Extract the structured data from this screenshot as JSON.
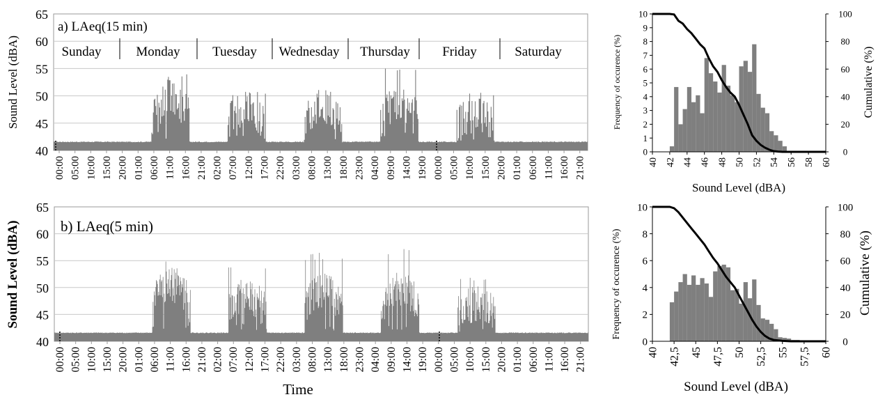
{
  "chart_data": [
    {
      "id": "ts_15",
      "type": "bar",
      "panel_label": "a) LAeq(15 min)",
      "ylabel": "Sound Level (dBA)",
      "xlabel": "",
      "ylim": [
        40,
        65
      ],
      "yticks": [
        40,
        45,
        50,
        55,
        60,
        65
      ],
      "grid": "horizontal",
      "time_ticks": [
        "00:00",
        "05:00",
        "10:00",
        "15:00",
        "20:00",
        "01:00",
        "06:00",
        "11:00",
        "16:00",
        "21:00",
        "02:00",
        "07:00",
        "12:00",
        "17:00",
        "22:00",
        "03:00",
        "08:00",
        "13:00",
        "18:00",
        "23:00",
        "04:00",
        "09:00",
        "14:00",
        "19:00",
        "00:00",
        "05:00",
        "10:00",
        "15:00",
        "20:00",
        "01:00",
        "06:00",
        "11:00",
        "16:00",
        "21:00"
      ],
      "days": [
        "Sunday",
        "Monday",
        "Tuesday",
        "Wednesday",
        "Thursday",
        "Friday",
        "Saturday"
      ],
      "baseline": 41.5,
      "day_peaks": [
        {
          "day": "Monday",
          "mean": 49.5,
          "max": 54
        },
        {
          "day": "Tuesday",
          "mean": 47.5,
          "max": 51.5
        },
        {
          "day": "Wednesday",
          "mean": 48,
          "max": 53.5
        },
        {
          "day": "Thursday",
          "mean": 48.5,
          "max": 55
        },
        {
          "day": "Friday",
          "mean": 46.5,
          "max": 51
        }
      ]
    },
    {
      "id": "ts_5",
      "type": "bar",
      "panel_label": "b)  LAeq(5  min)",
      "ylabel": "Sound Level  (dBA)",
      "xlabel": "Time",
      "ylim": [
        40,
        65
      ],
      "yticks": [
        40,
        45,
        50,
        55,
        60,
        65
      ],
      "grid": "horizontal",
      "time_ticks": [
        "00:00",
        "05:00",
        "10:00",
        "15:00",
        "20:00",
        "01:00",
        "06:00",
        "11:00",
        "16:00",
        "21:00",
        "02:00",
        "07:00",
        "12:00",
        "17:00",
        "22:00",
        "03:00",
        "08:00",
        "13:00",
        "18:00",
        "23:00",
        "04:00",
        "09:00",
        "14:00",
        "19:00",
        "00:00",
        "05:00",
        "10:00",
        "15:00",
        "20:00",
        "01:00",
        "06:00",
        "11:00",
        "16:00",
        "21:00"
      ],
      "baseline": 41.5,
      "day_peaks": [
        {
          "day": "Monday",
          "mean": 50.5,
          "max": 55.5
        },
        {
          "day": "Tuesday",
          "mean": 48.5,
          "max": 54
        },
        {
          "day": "Wednesday",
          "mean": 49.5,
          "max": 56.5
        },
        {
          "day": "Thursday",
          "mean": 50,
          "max": 57.5
        },
        {
          "day": "Friday",
          "mean": 47,
          "max": 52
        }
      ]
    },
    {
      "id": "hist_15",
      "type": "bar",
      "xlabel": "Sound Level (dBA)",
      "ylabel": "Frequency of occurence (%)",
      "y2label": "Cumulative (%)",
      "xlim": [
        40,
        60
      ],
      "ylim": [
        0,
        10
      ],
      "y2lim": [
        0,
        100
      ],
      "xticks": [
        "40",
        "42",
        "44",
        "46",
        "48",
        "50",
        "52",
        "54",
        "56",
        "58",
        "60"
      ],
      "yticks": [
        "0",
        "1",
        "2",
        "3",
        "4",
        "5",
        "6",
        "7",
        "8",
        "9",
        "10"
      ],
      "y2ticks": [
        "0",
        "20",
        "40",
        "60",
        "80",
        "100"
      ],
      "bin_start": 42,
      "bin_width": 0.5,
      "values": [
        0.4,
        4.7,
        2.0,
        3.1,
        4.7,
        3.6,
        4.1,
        2.8,
        6.8,
        5.7,
        5.1,
        4.3,
        6.3,
        4.8,
        4.1,
        3.6,
        6.2,
        6.6,
        5.8,
        7.8,
        4.2,
        3.2,
        2.8,
        1.5,
        1.2,
        0.8,
        0.4,
        0,
        0,
        0,
        0,
        0,
        0,
        0,
        0,
        0
      ],
      "cumulative": {
        "x": [
          40,
          42,
          42.5,
          43,
          43.5,
          44,
          44.5,
          45,
          45.5,
          46,
          46.5,
          47,
          47.5,
          48,
          48.5,
          49,
          49.5,
          50,
          50.5,
          51,
          51.5,
          52,
          52.5,
          53,
          53.5,
          54,
          54.5,
          55,
          55.5,
          56,
          58,
          60
        ],
        "y": [
          100,
          100,
          99.6,
          95,
          93,
          89,
          86,
          82,
          78,
          75,
          68,
          62,
          58,
          52,
          47,
          43,
          40,
          34,
          27,
          20,
          12,
          8,
          5,
          3,
          1.5,
          0.5,
          0.2,
          0,
          0,
          0,
          0,
          0
        ]
      }
    },
    {
      "id": "hist_5",
      "type": "bar",
      "xlabel": "Sound Level (dBA)",
      "ylabel": "Frequency of occurence (%)",
      "y2label": "Cumulative (%)",
      "xlim": [
        40,
        60
      ],
      "ylim": [
        0,
        10
      ],
      "y2lim": [
        0,
        100
      ],
      "xticks": [
        "40",
        "42,5",
        "45",
        "47,5",
        "50",
        "52,5",
        "55",
        "57,5",
        "60"
      ],
      "yticks": [
        "0",
        "2",
        "4",
        "6",
        "8",
        "10"
      ],
      "y2ticks": [
        "0",
        "20",
        "40",
        "60",
        "80",
        "100"
      ],
      "bin_start": 42,
      "bin_width": 0.5,
      "values": [
        2.9,
        3.7,
        4.4,
        5.0,
        4.2,
        4.9,
        4.2,
        4.7,
        4.3,
        3.3,
        5.2,
        5.6,
        5.7,
        5.5,
        3.8,
        3.9,
        2.8,
        4.4,
        3.2,
        4.6,
        2.7,
        1.7,
        1.6,
        1.3,
        0.9,
        0.3,
        0.25,
        0.2,
        0.1,
        0.1,
        0.05,
        0,
        0,
        0,
        0,
        0
      ],
      "cumulative": {
        "x": [
          40,
          42,
          42.5,
          43,
          43.5,
          44,
          44.5,
          45,
          45.5,
          46,
          46.5,
          47,
          47.5,
          48,
          48.5,
          49,
          49.5,
          50,
          50.5,
          51,
          51.5,
          52,
          52.5,
          53,
          53.5,
          54,
          55,
          56,
          60
        ],
        "y": [
          100,
          100,
          99,
          96,
          92,
          88,
          84,
          80,
          76,
          72,
          67,
          62,
          58,
          53,
          48,
          44,
          40,
          34,
          28,
          22,
          16,
          11,
          7,
          4,
          2,
          1,
          0.3,
          0,
          0
        ]
      }
    }
  ]
}
